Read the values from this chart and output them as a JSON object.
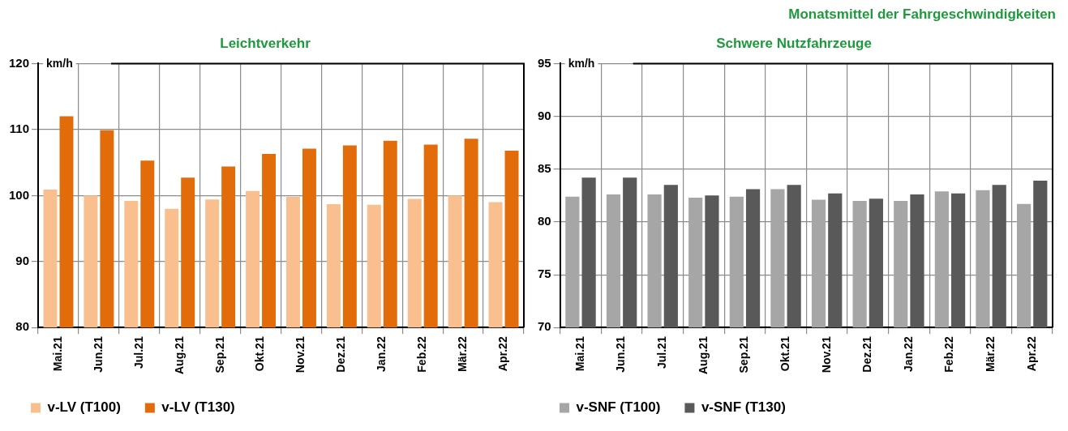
{
  "chart_data": [
    {
      "type": "bar",
      "title": "Leichtverkehr",
      "ylabel": "km/h",
      "categories": [
        "Mai.21",
        "Jun.21",
        "Jul.21",
        "Aug.21",
        "Sep.21",
        "Okt.21",
        "Nov.21",
        "Dez.21",
        "Jan.22",
        "Feb.22",
        "Mär.22",
        "Apr.22"
      ],
      "series": [
        {
          "name": "v-LV (T100)",
          "color": "#f9bf8f",
          "values": [
            100.9,
            100.0,
            99.2,
            98.0,
            99.4,
            100.7,
            99.8,
            98.7,
            98.6,
            99.5,
            100.0,
            99.0
          ]
        },
        {
          "name": "v-LV (T130)",
          "color": "#e36c0a",
          "values": [
            112.0,
            109.9,
            105.3,
            102.7,
            104.4,
            106.3,
            107.1,
            107.6,
            108.3,
            107.7,
            108.6,
            106.8
          ]
        }
      ],
      "ylim": [
        80,
        120
      ],
      "yticks": [
        80,
        90,
        100,
        110,
        120
      ],
      "grid": true,
      "legend": "bottom"
    },
    {
      "type": "bar",
      "title": "Schwere Nutzfahrzeuge",
      "ylabel": "km/h",
      "annotations": [
        "Monatsmittel der Fahrgeschwindigkeiten"
      ],
      "categories": [
        "Mai.21",
        "Jun.21",
        "Jul.21",
        "Aug.21",
        "Sep.21",
        "Okt.21",
        "Nov.21",
        "Dez.21",
        "Jan.22",
        "Feb.22",
        "Mär.22",
        "Apr.22"
      ],
      "series": [
        {
          "name": "v-SNF (T100)",
          "color": "#a6a6a6",
          "values": [
            82.4,
            82.6,
            82.6,
            82.3,
            82.4,
            83.1,
            82.1,
            82.0,
            82.0,
            82.9,
            83.0,
            81.7
          ]
        },
        {
          "name": "v-SNF (T130)",
          "color": "#595959",
          "values": [
            84.2,
            84.2,
            83.5,
            82.5,
            83.1,
            83.5,
            82.7,
            82.2,
            82.6,
            82.7,
            83.5,
            83.9
          ]
        }
      ],
      "ylim": [
        70,
        95
      ],
      "yticks": [
        70,
        75,
        80,
        85,
        90,
        95
      ],
      "grid": true,
      "legend": "bottom"
    }
  ]
}
